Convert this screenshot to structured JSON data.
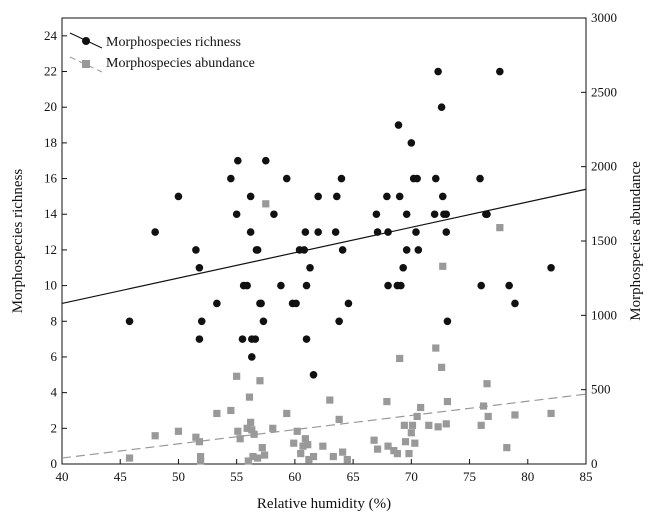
{
  "chart_data": {
    "type": "scatter",
    "xlabel": "Relative humidity (%)",
    "ylabel": "Morphospecies richness",
    "y2label": "Morphospecies abundance",
    "xlim": [
      40,
      85
    ],
    "ylim": [
      0,
      25
    ],
    "y2lim": [
      0,
      3000
    ],
    "x_ticks": [
      40,
      45,
      50,
      55,
      60,
      65,
      70,
      75,
      80,
      85
    ],
    "y_ticks": [
      0,
      2,
      4,
      6,
      8,
      10,
      12,
      14,
      16,
      18,
      20,
      22,
      24
    ],
    "y2_ticks": [
      0,
      500,
      1000,
      1500,
      2000,
      2500,
      3000
    ],
    "grid": false,
    "legend_position": "top-left",
    "colors": {
      "richness": "#111111",
      "abundance": "#999999"
    },
    "series": [
      {
        "name": "Morphospecies richness",
        "axis": "left",
        "marker": "circle",
        "fit": {
          "x": [
            40,
            85
          ],
          "y": [
            9.0,
            15.4
          ],
          "style": "solid"
        },
        "points": [
          [
            45.8,
            8
          ],
          [
            48,
            13
          ],
          [
            50,
            15
          ],
          [
            51.5,
            12
          ],
          [
            51.8,
            11
          ],
          [
            51.8,
            7
          ],
          [
            52,
            8
          ],
          [
            53.3,
            9
          ],
          [
            54.5,
            16
          ],
          [
            55,
            14
          ],
          [
            55.1,
            17
          ],
          [
            55.5,
            7
          ],
          [
            55.6,
            10
          ],
          [
            55.9,
            10
          ],
          [
            56.2,
            15
          ],
          [
            56.2,
            13
          ],
          [
            56.3,
            7
          ],
          [
            56.3,
            6
          ],
          [
            56.6,
            7
          ],
          [
            56.7,
            12
          ],
          [
            56.8,
            12
          ],
          [
            57,
            9
          ],
          [
            57.1,
            9
          ],
          [
            57.3,
            8
          ],
          [
            57.5,
            17
          ],
          [
            58.2,
            14
          ],
          [
            58.8,
            10
          ],
          [
            59.3,
            16
          ],
          [
            59.8,
            9
          ],
          [
            60.1,
            9
          ],
          [
            60.4,
            12
          ],
          [
            60.8,
            12
          ],
          [
            60.9,
            13
          ],
          [
            61,
            10
          ],
          [
            61,
            7
          ],
          [
            61.3,
            11
          ],
          [
            61.6,
            5
          ],
          [
            62,
            13
          ],
          [
            62,
            15
          ],
          [
            63.5,
            13
          ],
          [
            63.6,
            15
          ],
          [
            63.8,
            8
          ],
          [
            64,
            16
          ],
          [
            64.1,
            12
          ],
          [
            64.6,
            9
          ],
          [
            67,
            14
          ],
          [
            67.1,
            13
          ],
          [
            67.9,
            15
          ],
          [
            68,
            13
          ],
          [
            68,
            10
          ],
          [
            68.8,
            10
          ],
          [
            68.9,
            19
          ],
          [
            69,
            15
          ],
          [
            69.1,
            10
          ],
          [
            69.3,
            11
          ],
          [
            69.6,
            12
          ],
          [
            69.6,
            14
          ],
          [
            70,
            18
          ],
          [
            70.2,
            16
          ],
          [
            70.4,
            13
          ],
          [
            70.5,
            16
          ],
          [
            70.6,
            12
          ],
          [
            72,
            14
          ],
          [
            72.1,
            16
          ],
          [
            72.3,
            22
          ],
          [
            72.6,
            20
          ],
          [
            72.7,
            15
          ],
          [
            72.8,
            14
          ],
          [
            73,
            13
          ],
          [
            73,
            14
          ],
          [
            73.1,
            8
          ],
          [
            75.9,
            16
          ],
          [
            76,
            10
          ],
          [
            76.4,
            14
          ],
          [
            76.5,
            14
          ],
          [
            77.6,
            22
          ],
          [
            78.4,
            10
          ],
          [
            78.9,
            9
          ],
          [
            82,
            11
          ]
        ]
      },
      {
        "name": "Morphospecies abundance",
        "axis": "right",
        "marker": "square",
        "fit": {
          "x": [
            40,
            85
          ],
          "y": [
            40,
            470
          ],
          "style": "dashed"
        },
        "points": [
          [
            45.8,
            40
          ],
          [
            48,
            190
          ],
          [
            50,
            220
          ],
          [
            51.5,
            180
          ],
          [
            51.8,
            150
          ],
          [
            51.9,
            50
          ],
          [
            51.9,
            20
          ],
          [
            53.3,
            340
          ],
          [
            54.5,
            360
          ],
          [
            55,
            590
          ],
          [
            55.1,
            220
          ],
          [
            55.3,
            170
          ],
          [
            55.9,
            240
          ],
          [
            56,
            20
          ],
          [
            56.1,
            450
          ],
          [
            56.2,
            280
          ],
          [
            56.3,
            230
          ],
          [
            56.4,
            50
          ],
          [
            56.5,
            200
          ],
          [
            56.8,
            40
          ],
          [
            57,
            560
          ],
          [
            57.2,
            110
          ],
          [
            57.4,
            60
          ],
          [
            57.5,
            1750
          ],
          [
            58.1,
            240
          ],
          [
            59.3,
            340
          ],
          [
            59.9,
            140
          ],
          [
            60.2,
            220
          ],
          [
            60.5,
            70
          ],
          [
            60.7,
            120
          ],
          [
            60.9,
            170
          ],
          [
            61.1,
            130
          ],
          [
            61.2,
            30
          ],
          [
            61.6,
            50
          ],
          [
            62.4,
            120
          ],
          [
            63,
            430
          ],
          [
            63.3,
            50
          ],
          [
            63.8,
            300
          ],
          [
            64.1,
            80
          ],
          [
            64.5,
            30
          ],
          [
            66.8,
            160
          ],
          [
            67.1,
            100
          ],
          [
            67.9,
            420
          ],
          [
            68,
            120
          ],
          [
            68.5,
            90
          ],
          [
            68.8,
            70
          ],
          [
            69,
            710
          ],
          [
            69.4,
            260
          ],
          [
            69.5,
            150
          ],
          [
            69.8,
            70
          ],
          [
            70,
            210
          ],
          [
            70.1,
            260
          ],
          [
            70.3,
            140
          ],
          [
            70.5,
            320
          ],
          [
            70.8,
            380
          ],
          [
            71.5,
            260
          ],
          [
            72.1,
            780
          ],
          [
            72.3,
            250
          ],
          [
            72.6,
            650
          ],
          [
            72.7,
            1330
          ],
          [
            73,
            270
          ],
          [
            73.1,
            420
          ],
          [
            76,
            260
          ],
          [
            76.2,
            390
          ],
          [
            76.5,
            540
          ],
          [
            76.6,
            320
          ],
          [
            77.6,
            1590
          ],
          [
            78.2,
            110
          ],
          [
            78.9,
            330
          ],
          [
            82,
            340
          ]
        ]
      }
    ]
  }
}
